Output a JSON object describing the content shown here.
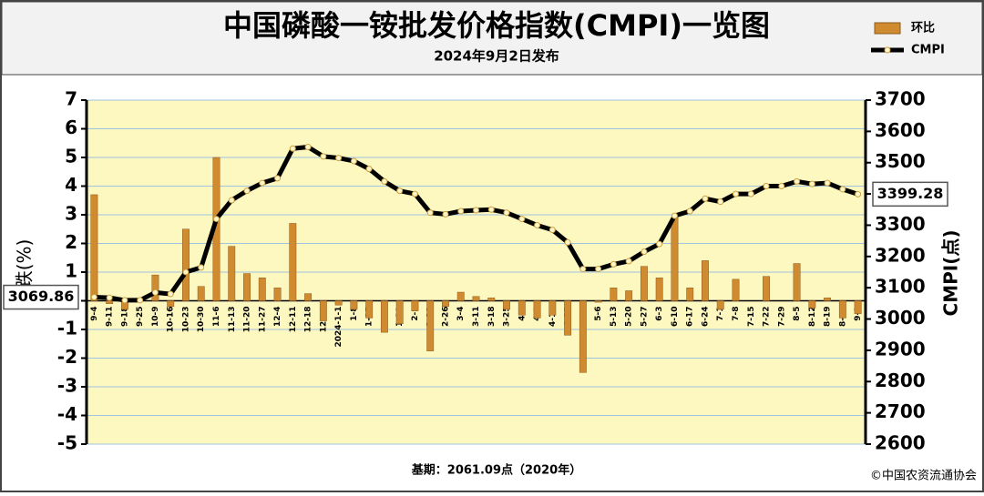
{
  "chart_data": {
    "type": "bar",
    "title": "中国磷酸一铵批发价格指数(CMPI)一览图",
    "subtitle": "2024年9月2日发布",
    "y_label": "涨跌(%)",
    "y2_label": "CMPI(点)",
    "footnote": "基期：2061.09点（2020年）",
    "source": "©中国农资流通协会",
    "categories": [
      "9-4",
      "9-11",
      "9-18",
      "9-25",
      "10-9",
      "10-16",
      "10-23",
      "10-30",
      "11-6",
      "11-13",
      "11-20",
      "11-27",
      "12-4",
      "12-11",
      "12-18",
      "12-25",
      "2024-1-1",
      "1-8",
      "1-15",
      "1-22",
      "1-29",
      "2-5",
      "2-19",
      "2-26",
      "3-4",
      "3-11",
      "3-18",
      "3-25",
      "4-1",
      "4-8",
      "4-15",
      "4-22",
      "4-29",
      "5-6",
      "5-13",
      "5-20",
      "5-27",
      "6-3",
      "6-10",
      "6-17",
      "6-24",
      "7-1",
      "7-8",
      "7-15",
      "7-22",
      "7-29",
      "8-5",
      "8-12",
      "8-19",
      "8-26",
      "9-2"
    ],
    "series": [
      {
        "name": "环比",
        "type": "bar",
        "color": "#d08a30",
        "values": [
          3.7,
          -0.1,
          -0.3,
          0,
          0.9,
          -0.2,
          2.5,
          0.5,
          5.0,
          1.9,
          0.95,
          0.8,
          0.45,
          2.7,
          0.25,
          -0.7,
          -0.15,
          -0.3,
          -0.6,
          -1.1,
          -0.8,
          -0.35,
          -1.75,
          -0.2,
          0.3,
          0.15,
          0.1,
          -0.3,
          -0.5,
          -0.6,
          -0.5,
          -1.2,
          -2.5,
          -0.05,
          0.45,
          0.35,
          1.2,
          0.8,
          2.9,
          0.45,
          1.4,
          -0.3,
          0.75,
          0,
          0.85,
          0,
          1.3,
          -0.25,
          0.1,
          -0.6,
          -0.45
        ]
      },
      {
        "name": "CMPI",
        "type": "line",
        "axis": "y2",
        "color": "#000000",
        "values": [
          3069.86,
          3068,
          3060,
          3060,
          3085,
          3080,
          3150,
          3165,
          3320,
          3380,
          3410,
          3435,
          3450,
          3545,
          3550,
          3520,
          3515,
          3505,
          3480,
          3440,
          3410,
          3400,
          3340,
          3335,
          3345,
          3348,
          3350,
          3340,
          3320,
          3300,
          3285,
          3245,
          3160,
          3160,
          3175,
          3185,
          3215,
          3240,
          3330,
          3345,
          3385,
          3375,
          3400,
          3400,
          3425,
          3425,
          3440,
          3432,
          3435,
          3415,
          3399.28
        ]
      }
    ],
    "ylim": [
      -5,
      7
    ],
    "yticks": [
      -5,
      -4,
      -3,
      -2,
      -1,
      0,
      1,
      2,
      3,
      4,
      5,
      6,
      7
    ],
    "y2lim": [
      2600,
      3700
    ],
    "y2ticks": [
      2600,
      2700,
      2800,
      2900,
      3000,
      3100,
      3200,
      3300,
      3400,
      3500,
      3600,
      3700
    ],
    "grid": true,
    "legend": "top-right"
  }
}
